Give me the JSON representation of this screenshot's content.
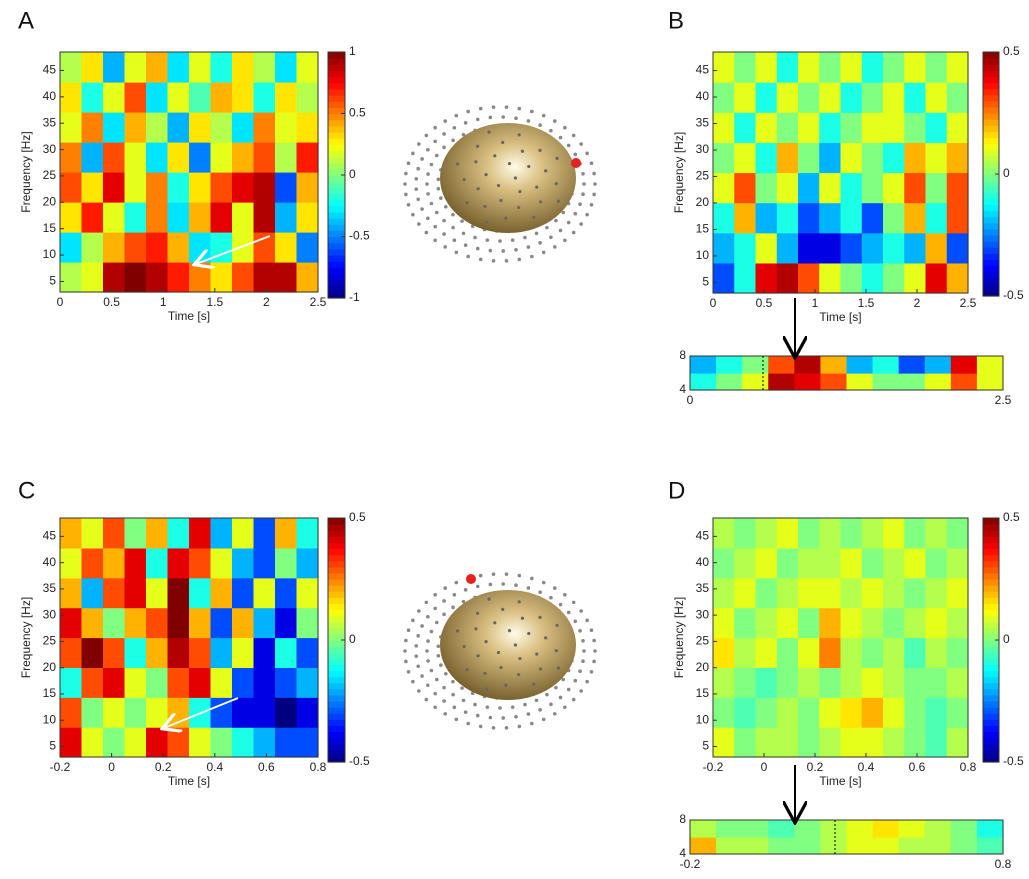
{
  "chart_data": [
    {
      "type": "heatmap",
      "panel_label": "A",
      "xlabel": "Time [s]",
      "ylabel": "Frequency [Hz]",
      "xlim": [
        0,
        2.5
      ],
      "ylim": [
        3,
        48.5
      ],
      "xticks": [
        0,
        0.5,
        1,
        1.5,
        2,
        2.5
      ],
      "yticks": [
        5,
        10,
        15,
        20,
        25,
        30,
        35,
        40,
        45
      ],
      "clim": [
        -1,
        1
      ],
      "cticks": [
        -1,
        -0.5,
        0,
        0.5,
        1
      ],
      "z": [
        [
          0.1,
          0.2,
          0.9,
          1,
          0.9,
          0.7,
          0.5,
          0.3,
          0.6,
          0.9,
          0.9,
          0.4
        ],
        [
          -0.3,
          0.1,
          0.4,
          0.6,
          0.7,
          0.4,
          -0.3,
          -0.2,
          0.2,
          0.6,
          0.3,
          -0.5
        ],
        [
          0.3,
          0.7,
          0.2,
          -0.2,
          0.5,
          -0.3,
          0.4,
          0.8,
          0.2,
          0.9,
          -0.4,
          0.3
        ],
        [
          0.6,
          0.3,
          0.8,
          0.2,
          0.5,
          -0.2,
          0.3,
          0.6,
          0.8,
          0.9,
          -0.6,
          0.4
        ],
        [
          0.5,
          -0.4,
          0.6,
          0.2,
          -0.3,
          0.3,
          -0.5,
          0.2,
          0.4,
          0.6,
          0.1,
          0.7
        ],
        [
          0.2,
          0.5,
          -0.3,
          0.4,
          0.1,
          -0.4,
          0.3,
          0.1,
          -0.3,
          0.5,
          0.2,
          0.3
        ],
        [
          0.3,
          -0.2,
          0.2,
          0.6,
          -0.3,
          0.2,
          -0.1,
          0.4,
          0.3,
          -0.2,
          0.3,
          0.1
        ],
        [
          0.1,
          0.3,
          -0.4,
          0.2,
          0.4,
          -0.3,
          0.2,
          -0.2,
          0.3,
          0.1,
          -0.3,
          0.2
        ]
      ]
    },
    {
      "type": "heatmap",
      "panel_label": "B",
      "xlabel": "Time [s]",
      "ylabel": "Frequency [Hz]",
      "xlim": [
        0,
        2.5
      ],
      "ylim": [
        3,
        48.5
      ],
      "xticks": [
        0,
        0.5,
        1,
        1.5,
        2,
        2.5
      ],
      "yticks": [
        5,
        10,
        15,
        20,
        25,
        30,
        35,
        40,
        45
      ],
      "clim": [
        -0.5,
        0.5
      ],
      "cticks": [
        -0.5,
        0,
        0.5
      ],
      "z": [
        [
          -0.3,
          -0.1,
          0.4,
          0.45,
          0.3,
          0.1,
          0,
          -0.1,
          0,
          0.1,
          0.4,
          0.2
        ],
        [
          -0.2,
          -0.1,
          0.1,
          -0.2,
          -0.4,
          -0.4,
          -0.3,
          -0.2,
          -0.1,
          -0.2,
          0.2,
          -0.3
        ],
        [
          -0.1,
          0.2,
          -0.2,
          -0.1,
          -0.3,
          -0.2,
          -0.1,
          -0.3,
          0,
          0.2,
          -0.1,
          0.3
        ],
        [
          0.1,
          0.3,
          0,
          0.1,
          -0.2,
          0.1,
          -0.1,
          0,
          0.1,
          0.3,
          0,
          0.3
        ],
        [
          0,
          0.1,
          -0.1,
          0.2,
          0,
          -0.2,
          0.1,
          0,
          -0.1,
          0.2,
          0.1,
          0.2
        ],
        [
          0.1,
          -0.1,
          0.1,
          0,
          0.1,
          -0.1,
          0,
          0.1,
          0.1,
          0,
          -0.1,
          0.1
        ],
        [
          0,
          0.1,
          -0.1,
          0.1,
          0,
          0.1,
          -0.1,
          0,
          0.1,
          -0.1,
          0.1,
          0
        ],
        [
          0.1,
          0,
          0.1,
          -0.1,
          0.1,
          0,
          0.1,
          -0.1,
          0,
          0.1,
          0,
          0.1
        ]
      ],
      "inset": {
        "type": "heatmap",
        "xlim": [
          0,
          2.5
        ],
        "ylim": [
          4,
          8
        ],
        "xticks": [
          0,
          2.5
        ],
        "yticks": [
          4,
          8
        ],
        "clim": [
          -0.5,
          0.5
        ],
        "z": [
          [
            -0.1,
            0,
            0.1,
            0.45,
            0.4,
            0.3,
            0.1,
            0,
            0,
            0.1,
            0.3,
            0.1
          ],
          [
            -0.2,
            -0.1,
            0,
            0.3,
            0.45,
            0.2,
            -0.2,
            -0.1,
            -0.3,
            -0.2,
            0.4,
            0.1
          ]
        ]
      }
    },
    {
      "type": "heatmap",
      "panel_label": "C",
      "xlabel": "Time [s]",
      "ylabel": "Frequency [Hz]",
      "xlim": [
        -0.2,
        0.8
      ],
      "ylim": [
        3,
        48.5
      ],
      "xticks": [
        -0.2,
        0,
        0.2,
        0.4,
        0.6,
        0.8
      ],
      "yticks": [
        5,
        10,
        15,
        20,
        25,
        30,
        35,
        40,
        45
      ],
      "clim": [
        -0.5,
        0.5
      ],
      "cticks": [
        -0.5,
        0,
        0.5
      ],
      "z": [
        [
          0.4,
          0.1,
          0,
          0.1,
          0.4,
          0.3,
          0.1,
          0,
          -0.1,
          -0.2,
          -0.3,
          -0.3
        ],
        [
          0.3,
          0,
          0.1,
          0,
          0.1,
          0.2,
          -0.1,
          -0.3,
          -0.4,
          -0.4,
          -0.5,
          -0.4
        ],
        [
          -0.1,
          0.3,
          0.4,
          0.1,
          0,
          0.3,
          0.4,
          0.1,
          -0.3,
          -0.4,
          -0.3,
          -0.2
        ],
        [
          0.3,
          0.5,
          0.3,
          -0.1,
          0.2,
          0.45,
          0.3,
          -0.2,
          0.1,
          -0.4,
          -0.1,
          -0.3
        ],
        [
          0.4,
          0.2,
          0,
          0.2,
          0.3,
          0.5,
          0.2,
          -0.3,
          0.2,
          -0.2,
          -0.4,
          0
        ],
        [
          0.2,
          -0.2,
          0.3,
          0.4,
          0.1,
          0.5,
          -0.1,
          0.2,
          -0.3,
          0.1,
          -0.3,
          0.1
        ],
        [
          0.1,
          0.3,
          0.2,
          0.4,
          -0.1,
          0.4,
          0.3,
          0.1,
          -0.2,
          -0.3,
          0,
          -0.2
        ],
        [
          0.2,
          0.1,
          0.3,
          0,
          0.2,
          -0.1,
          0.4,
          -0.2,
          0.1,
          -0.3,
          0.2,
          -0.1
        ]
      ]
    },
    {
      "type": "heatmap",
      "panel_label": "D",
      "xlabel": "Time [s]",
      "ylabel": "Frequency [Hz]",
      "xlim": [
        -0.2,
        0.8
      ],
      "ylim": [
        3,
        48.5
      ],
      "xticks": [
        -0.2,
        0,
        0.2,
        0.4,
        0.6,
        0.8
      ],
      "yticks": [
        5,
        10,
        15,
        20,
        25,
        30,
        35,
        40,
        45
      ],
      "clim": [
        -0.5,
        0.5
      ],
      "cticks": [
        -0.5,
        0,
        0.5
      ],
      "z": [
        [
          0.1,
          0,
          0.05,
          0.05,
          0,
          0.05,
          0.1,
          0.1,
          0.05,
          0,
          -0.05,
          0.05
        ],
        [
          0,
          -0.05,
          0,
          0.05,
          0,
          0.1,
          0.15,
          0.2,
          0.1,
          0,
          -0.05,
          0
        ],
        [
          0.05,
          0,
          -0.05,
          0,
          0.05,
          0,
          0.05,
          0.1,
          0.05,
          0,
          0,
          0.05
        ],
        [
          0.15,
          0.05,
          0.1,
          0,
          0.1,
          0.25,
          0.05,
          0,
          0.05,
          -0.05,
          0.05,
          0
        ],
        [
          0.1,
          0,
          0.05,
          0.1,
          0,
          0.2,
          0.1,
          0.05,
          0,
          0.05,
          0.1,
          0.05
        ],
        [
          0.05,
          0.1,
          0,
          0.05,
          0.1,
          0.1,
          0.05,
          0.1,
          0.05,
          0,
          0.05,
          0.1
        ],
        [
          0,
          0.05,
          0.1,
          0,
          0.05,
          0.05,
          0.1,
          0,
          0.05,
          0.1,
          0,
          0.05
        ],
        [
          0.05,
          0,
          0.05,
          0.1,
          0,
          0.05,
          0,
          0.05,
          0.1,
          0,
          0.05,
          0
        ]
      ],
      "inset": {
        "type": "heatmap",
        "xlim": [
          -0.2,
          0.8
        ],
        "ylim": [
          4,
          8
        ],
        "xticks": [
          -0.2,
          0.8
        ],
        "yticks": [
          4,
          8
        ],
        "clim": [
          -0.5,
          0.5
        ],
        "z": [
          [
            0.2,
            0.05,
            0.05,
            0,
            0,
            0.05,
            0.1,
            0.1,
            0.05,
            0.05,
            0,
            -0.05
          ],
          [
            0.05,
            0,
            0,
            -0.05,
            0,
            0.05,
            0.1,
            0.15,
            0.1,
            0.05,
            0,
            -0.1
          ]
        ]
      }
    }
  ]
}
